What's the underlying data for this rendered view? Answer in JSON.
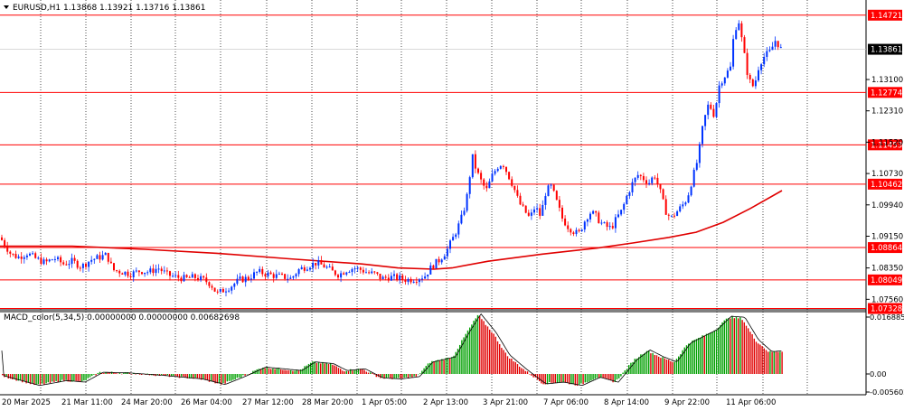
{
  "header": {
    "symbol_line": "EURUSD,H1  1.13868 1.13921 1.13716 1.13861"
  },
  "macd_header": {
    "label": "MACD_color(5,34,5) 0.00000000 0.00000000 0.00682698"
  },
  "colors": {
    "background": "#ffffff",
    "candle": "#0033ff",
    "candle_bear": "#ff0000",
    "level_lines": "#ff0000",
    "moving_average": "#e00000",
    "macd_up": "#00a000",
    "macd_down": "#e00000",
    "grid": "#000000"
  },
  "chart_data": [
    {
      "type": "candlestick",
      "title": "EURUSD,H1",
      "ohlc_readout": {
        "open": 1.13868,
        "high": 1.13921,
        "low": 1.13716,
        "close": 1.13861
      },
      "price_axis_ticks": [
        "1.13100",
        "1.12310",
        "1.11520",
        "1.10730",
        "1.09940",
        "1.09150",
        "1.08350",
        "1.07560"
      ],
      "current_price": "1.13861",
      "levels": [
        "1.14721",
        "1.12774",
        "1.11453",
        "1.10462",
        "1.08864",
        "1.08049",
        "1.07328"
      ],
      "x_tick_labels": [
        "20 Mar 2025",
        "21 Mar 11:00",
        "24 Mar 20:00",
        "26 Mar 04:00",
        "27 Mar 12:00",
        "28 Mar 20:00",
        "1 Apr 05:00",
        "2 Apr 13:00",
        "3 Apr 21:00",
        "7 Apr 06:00",
        "8 Apr 14:00",
        "9 Apr 22:00",
        "11 Apr 06:00"
      ],
      "price_path": [
        [
          0,
          1.0912
        ],
        [
          5,
          1.0895
        ],
        [
          12,
          1.087
        ],
        [
          20,
          1.0862
        ],
        [
          30,
          1.0872
        ],
        [
          40,
          1.0858
        ],
        [
          50,
          1.0848
        ],
        [
          60,
          1.086
        ],
        [
          70,
          1.0845
        ],
        [
          80,
          1.0852
        ],
        [
          90,
          1.0838
        ],
        [
          100,
          1.0855
        ],
        [
          110,
          1.0862
        ],
        [
          118,
          1.0868
        ],
        [
          125,
          1.083
        ],
        [
          135,
          1.0825
        ],
        [
          145,
          1.082
        ],
        [
          155,
          1.0828
        ],
        [
          165,
          1.0825
        ],
        [
          175,
          1.0835
        ],
        [
          185,
          1.0818
        ],
        [
          195,
          1.0812
        ],
        [
          205,
          1.0808
        ],
        [
          215,
          1.0812
        ],
        [
          225,
          1.0805
        ],
        [
          233,
          1.0795
        ],
        [
          240,
          1.077
        ],
        [
          248,
          1.078
        ],
        [
          256,
          1.079
        ],
        [
          265,
          1.0805
        ],
        [
          275,
          1.081
        ],
        [
          285,
          1.0825
        ],
        [
          295,
          1.082
        ],
        [
          305,
          1.0815
        ],
        [
          315,
          1.0812
        ],
        [
          322,
          1.0808
        ],
        [
          330,
          1.083
        ],
        [
          340,
          1.084
        ],
        [
          350,
          1.0848
        ],
        [
          360,
          1.0838
        ],
        [
          368,
          1.0825
        ],
        [
          375,
          1.0818
        ],
        [
          383,
          1.083
        ],
        [
          392,
          1.0835
        ],
        [
          400,
          1.083
        ],
        [
          408,
          1.0822
        ],
        [
          415,
          1.082
        ],
        [
          422,
          1.0808
        ],
        [
          430,
          1.0812
        ],
        [
          440,
          1.081
        ],
        [
          450,
          1.0805
        ],
        [
          460,
          1.0808
        ],
        [
          470,
          1.0815
        ],
        [
          478,
          1.084
        ],
        [
          486,
          1.0855
        ],
        [
          494,
          1.0878
        ],
        [
          500,
          1.0905
        ],
        [
          506,
          1.0935
        ],
        [
          512,
          1.097
        ],
        [
          518,
          1.103
        ],
        [
          522,
          1.112
        ],
        [
          527,
          1.108
        ],
        [
          533,
          1.105
        ],
        [
          538,
          1.103
        ],
        [
          544,
          1.1065
        ],
        [
          550,
          1.109
        ],
        [
          556,
          1.11
        ],
        [
          562,
          1.107
        ],
        [
          568,
          1.104
        ],
        [
          574,
          1.1
        ],
        [
          580,
          1.098
        ],
        [
          586,
          1.096
        ],
        [
          592,
          1.099
        ],
        [
          598,
          1.0965
        ],
        [
          604,
          1.103
        ],
        [
          610,
          1.104
        ],
        [
          616,
          1.1
        ],
        [
          622,
          1.096
        ],
        [
          628,
          1.094
        ],
        [
          634,
          1.0928
        ],
        [
          640,
          1.092
        ],
        [
          646,
          1.095
        ],
        [
          652,
          1.0975
        ],
        [
          658,
          1.097
        ],
        [
          664,
          1.095
        ],
        [
          670,
          1.094
        ],
        [
          676,
          1.0935
        ],
        [
          682,
          1.096
        ],
        [
          688,
          1.098
        ],
        [
          694,
          1.102
        ],
        [
          700,
          1.105
        ],
        [
          706,
          1.107
        ],
        [
          712,
          1.106
        ],
        [
          718,
          1.105
        ],
        [
          724,
          1.107
        ],
        [
          730,
          1.103
        ],
        [
          736,
          1.098
        ],
        [
          742,
          1.096
        ],
        [
          748,
          1.0975
        ],
        [
          754,
          1.099
        ],
        [
          760,
          1.101
        ],
        [
          766,
          1.106
        ],
        [
          772,
          1.111
        ],
        [
          778,
          1.12
        ],
        [
          784,
          1.125
        ],
        [
          790,
          1.122
        ],
        [
          796,
          1.13
        ],
        [
          802,
          1.132
        ],
        [
          808,
          1.134
        ],
        [
          812,
          1.143
        ],
        [
          817,
          1.146
        ],
        [
          822,
          1.139
        ],
        [
          828,
          1.131
        ],
        [
          834,
          1.129
        ],
        [
          840,
          1.135
        ],
        [
          846,
          1.137
        ],
        [
          852,
          1.138
        ],
        [
          858,
          1.141
        ],
        [
          864,
          1.1386
        ]
      ],
      "moving_average": [
        [
          0,
          1.089
        ],
        [
          80,
          1.089
        ],
        [
          160,
          1.0882
        ],
        [
          240,
          1.0872
        ],
        [
          320,
          1.0858
        ],
        [
          400,
          1.0845
        ],
        [
          440,
          1.0835
        ],
        [
          480,
          1.0832
        ],
        [
          500,
          1.0835
        ],
        [
          540,
          1.0852
        ],
        [
          600,
          1.087
        ],
        [
          660,
          1.0885
        ],
        [
          700,
          1.0898
        ],
        [
          740,
          1.0912
        ],
        [
          770,
          1.0925
        ],
        [
          800,
          1.095
        ],
        [
          830,
          1.0985
        ],
        [
          865,
          1.103
        ]
      ]
    },
    {
      "type": "histogram",
      "title": "MACD_color(5,34,5)",
      "y_tick_labels": [
        "0.0168855",
        "0.00",
        "-0.0056025"
      ],
      "ylim": [
        -0.0056025,
        0.0168855
      ],
      "profile": [
        [
          0,
          -0.0005
        ],
        [
          40,
          -0.0035
        ],
        [
          70,
          -0.002
        ],
        [
          90,
          -0.0025
        ],
        [
          110,
          0.0005
        ],
        [
          140,
          0.0003
        ],
        [
          180,
          -0.0005
        ],
        [
          220,
          -0.0015
        ],
        [
          245,
          -0.0032
        ],
        [
          265,
          -0.001
        ],
        [
          290,
          0.002
        ],
        [
          310,
          0.0015
        ],
        [
          330,
          0.001
        ],
        [
          345,
          0.0035
        ],
        [
          365,
          0.003
        ],
        [
          380,
          0.001
        ],
        [
          400,
          0.0015
        ],
        [
          420,
          -0.0012
        ],
        [
          440,
          -0.0015
        ],
        [
          460,
          -0.0008
        ],
        [
          475,
          0.0035
        ],
        [
          500,
          0.005
        ],
        [
          515,
          0.012
        ],
        [
          528,
          0.0175
        ],
        [
          545,
          0.012
        ],
        [
          560,
          0.0055
        ],
        [
          578,
          0.0015
        ],
        [
          600,
          -0.003
        ],
        [
          620,
          -0.0025
        ],
        [
          640,
          -0.0035
        ],
        [
          660,
          -0.001
        ],
        [
          680,
          -0.0025
        ],
        [
          700,
          0.004
        ],
        [
          715,
          0.007
        ],
        [
          730,
          0.005
        ],
        [
          745,
          0.0035
        ],
        [
          760,
          0.009
        ],
        [
          775,
          0.011
        ],
        [
          790,
          0.013
        ],
        [
          805,
          0.0168
        ],
        [
          820,
          0.0165
        ],
        [
          835,
          0.01
        ],
        [
          850,
          0.0065
        ],
        [
          865,
          0.0068
        ]
      ]
    }
  ]
}
